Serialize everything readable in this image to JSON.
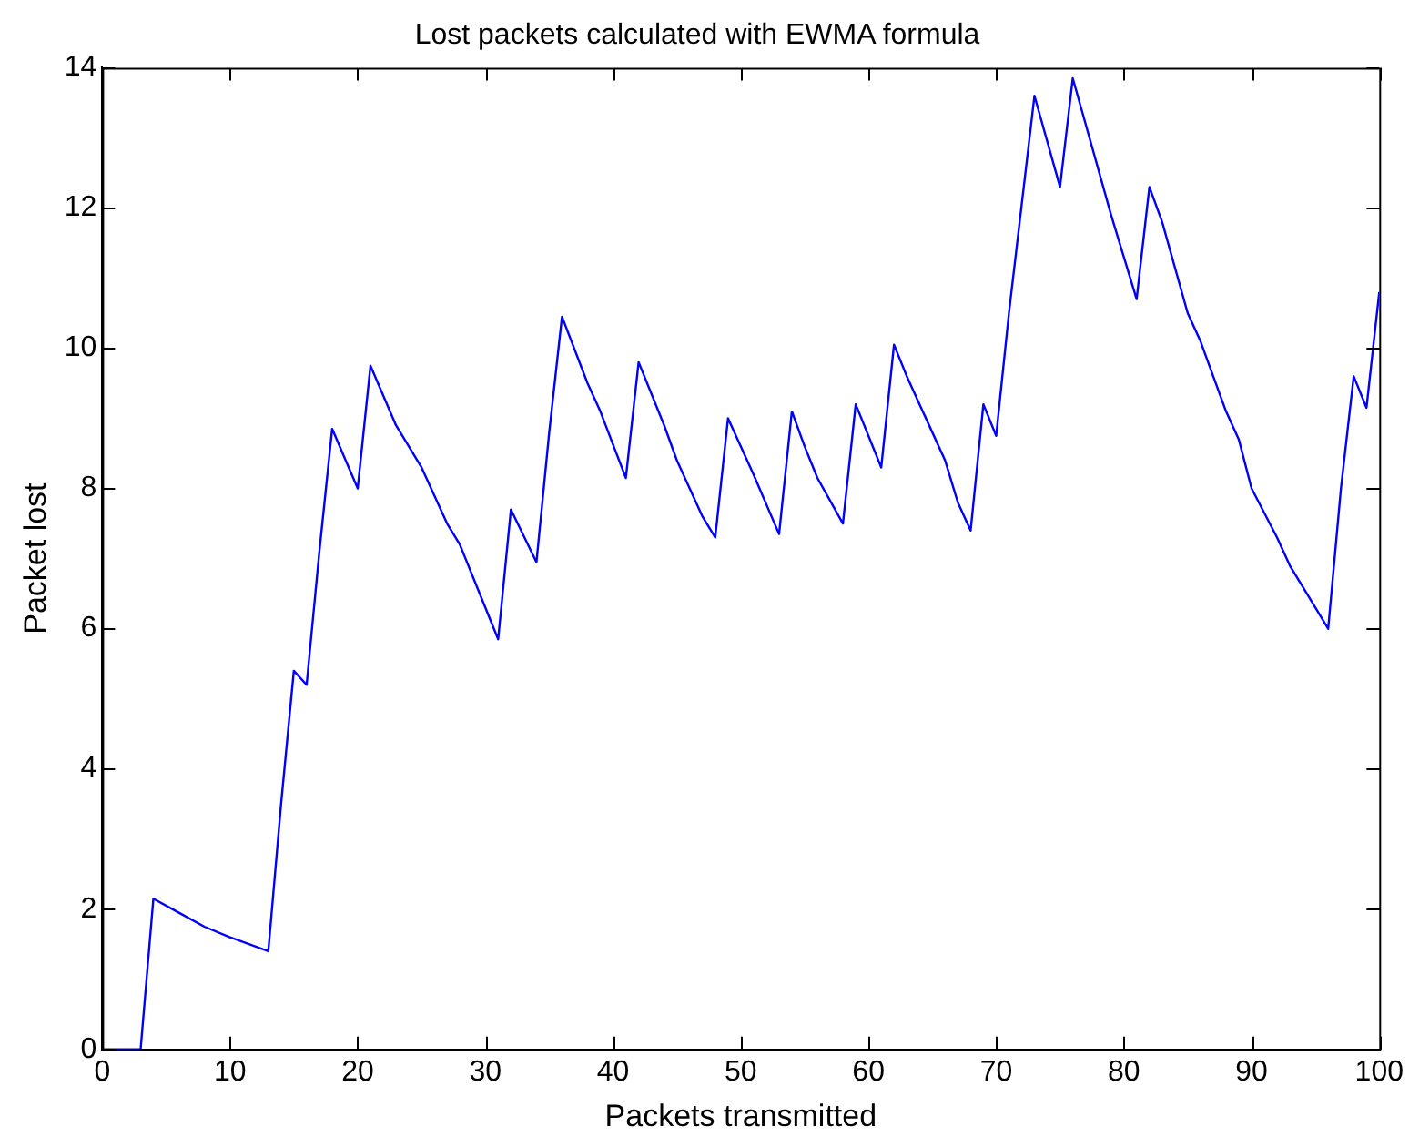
{
  "chart_data": {
    "type": "line",
    "title": "Lost packets calculated with EWMA formula",
    "xlabel": "Packets transmitted",
    "ylabel": "Packet lost",
    "x": [
      0,
      3,
      4,
      6,
      8,
      10,
      13,
      14,
      15,
      16,
      17,
      18,
      20,
      21,
      23,
      25,
      27,
      28,
      30,
      31,
      32,
      34,
      35,
      36,
      38,
      39,
      41,
      42,
      44,
      45,
      47,
      48,
      49,
      51,
      53,
      54,
      55,
      56,
      58,
      59,
      61,
      62,
      63,
      64,
      66,
      67,
      68,
      69,
      70,
      71,
      73,
      75,
      76,
      77,
      79,
      81,
      82,
      83,
      85,
      86,
      88,
      89,
      90,
      92,
      93,
      94,
      96,
      97,
      98,
      99,
      100
    ],
    "series": [
      {
        "color": "#0000ff",
        "values": [
          0,
          0,
          2.15,
          1.95,
          1.75,
          1.6,
          1.4,
          3.5,
          5.4,
          5.2,
          7.1,
          8.85,
          8.0,
          9.75,
          8.9,
          8.3,
          7.5,
          7.2,
          6.3,
          5.85,
          7.7,
          6.95,
          8.8,
          10.45,
          9.5,
          9.1,
          8.15,
          9.8,
          8.9,
          8.4,
          7.6,
          7.3,
          9.0,
          8.2,
          7.35,
          9.1,
          8.6,
          8.15,
          7.5,
          9.2,
          8.3,
          10.05,
          9.6,
          9.2,
          8.4,
          7.8,
          7.4,
          9.2,
          8.75,
          10.5,
          13.6,
          12.3,
          13.85,
          13.2,
          11.9,
          10.7,
          12.3,
          11.8,
          10.5,
          10.1,
          9.1,
          8.7,
          8.0,
          7.3,
          6.9,
          6.6,
          6.0,
          8.0,
          9.6,
          9.15,
          10.8
        ]
      }
    ],
    "xlim": [
      0,
      100
    ],
    "xticks": [
      0,
      10,
      20,
      30,
      40,
      50,
      60,
      70,
      80,
      90,
      100
    ],
    "ylim": [
      0,
      14
    ],
    "yticks": [
      0,
      2,
      4,
      6,
      8,
      10,
      12,
      14
    ],
    "grid": false,
    "legend": false,
    "marker": "none",
    "line_style": "solid"
  }
}
